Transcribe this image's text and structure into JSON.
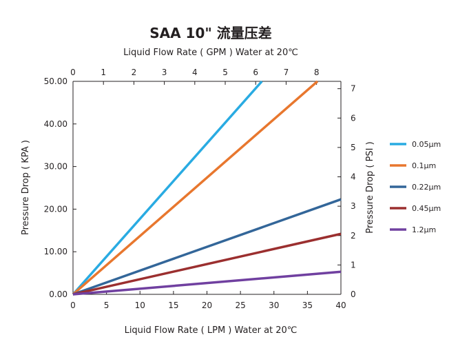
{
  "chart_data": {
    "type": "line",
    "title": "SAA 10\" 流量压差",
    "xlabel": "Liquid Flow Rate ( LPM ) Water  at  20℃",
    "x2label": "Liquid Flow Rate ( GPM ) Water  at  20℃",
    "ylabel": "Pressure Drop  ( KPA )",
    "y2label": "Pressure Drop ( PSI )",
    "xlim": [
      0,
      40
    ],
    "ylim": [
      0,
      50
    ],
    "x2lim": [
      0,
      8.8
    ],
    "y2lim": [
      0,
      7.25
    ],
    "xticks": [
      "0",
      "5",
      "10",
      "15",
      "20",
      "25",
      "30",
      "35",
      "40"
    ],
    "yticks": [
      "0.00",
      "10.00",
      "20.00",
      "30.00",
      "40.00",
      "50.00"
    ],
    "x2ticks": [
      "0",
      "1",
      "2",
      "3",
      "4",
      "5",
      "6",
      "7",
      "8"
    ],
    "y2ticks": [
      "0",
      "1",
      "2",
      "3",
      "4",
      "5",
      "6",
      "7"
    ],
    "grid": false,
    "legend_position": "right",
    "series": [
      {
        "name": "0.05μm",
        "color": "#29abe2",
        "x": [
          0,
          28.2
        ],
        "y": [
          0,
          50
        ]
      },
      {
        "name": "0.1μm",
        "color": "#e8772e",
        "x": [
          0,
          36.5
        ],
        "y": [
          0,
          50
        ]
      },
      {
        "name": "0.22μm",
        "color": "#336699",
        "x": [
          0,
          40
        ],
        "y": [
          0,
          22.3
        ]
      },
      {
        "name": "0.45μm",
        "color": "#9b2f2f",
        "x": [
          0,
          40
        ],
        "y": [
          0,
          14.2
        ]
      },
      {
        "name": "1.2μm",
        "color": "#7040a0",
        "x": [
          0,
          40
        ],
        "y": [
          0,
          5.3
        ]
      }
    ]
  }
}
